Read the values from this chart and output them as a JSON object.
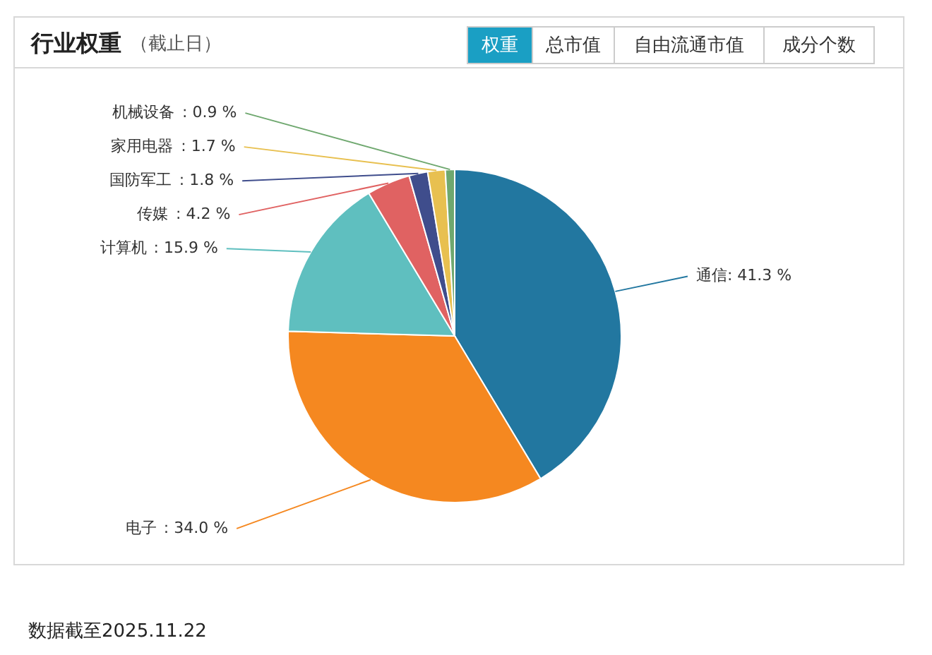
{
  "chart_data": {
    "type": "pie",
    "title": "行业权重",
    "subtitle": "（截止日）",
    "categories": [
      "通信",
      "电子",
      "计算机",
      "传媒",
      "国防军工",
      "家用电器",
      "机械设备"
    ],
    "values": [
      41.3,
      34.0,
      15.9,
      4.2,
      1.8,
      1.7,
      0.9
    ],
    "colors": [
      "#2277a0",
      "#f58820",
      "#5fbfbf",
      "#e06262",
      "#3f4d8c",
      "#e8c050",
      "#6fa86f"
    ],
    "value_labels": [
      ": 41.3 %",
      ": 34.0 %",
      ": 15.9 %",
      ": 4.2 %",
      ": 1.8 %",
      ": 1.7 %",
      ": 0.9 %"
    ],
    "annotations": [
      "权重",
      "总市值",
      "自由流通市值",
      "成分个数",
      "数据截至2025.11.22"
    ]
  }
}
